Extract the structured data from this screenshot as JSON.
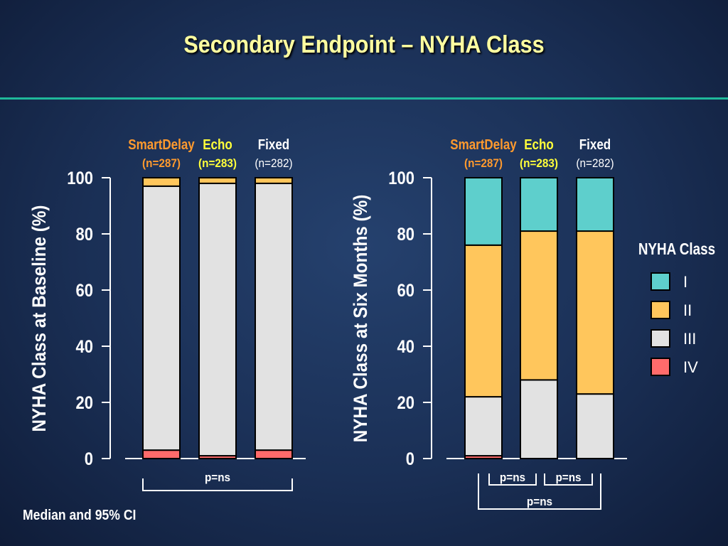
{
  "title": "Secondary Endpoint – NYHA Class",
  "footnote": "Median and 95% CI",
  "colors": {
    "class_I": "#5ecfcc",
    "class_II": "#ffc65c",
    "class_III": "#e2e2e2",
    "class_IV": "#ff6b6b",
    "smartdelay_label": "#ff9a2e",
    "echo_label": "#ffff3a",
    "fixed_label": "#ffffff",
    "axis": "#ffffff",
    "title": "#ffffa0"
  },
  "legend": {
    "title": "NYHA Class",
    "items": [
      {
        "label": "I",
        "key": "class_I"
      },
      {
        "label": "II",
        "key": "class_II"
      },
      {
        "label": "III",
        "key": "class_III"
      },
      {
        "label": "IV",
        "key": "class_IV"
      }
    ]
  },
  "chart_data": [
    {
      "type": "bar",
      "stacked": true,
      "ylabel": "NYHA Class at Baseline (%)",
      "ylim": [
        0,
        100
      ],
      "yticks": [
        0,
        20,
        40,
        60,
        80,
        100
      ],
      "categories": [
        "SmartDelay",
        "Echo",
        "Fixed"
      ],
      "category_counts": [
        "(n=287)",
        "(n=283)",
        "(n=282)"
      ],
      "series": [
        {
          "name": "IV",
          "values": [
            3,
            1,
            3
          ]
        },
        {
          "name": "III",
          "values": [
            94,
            97,
            95
          ]
        },
        {
          "name": "II",
          "values": [
            3,
            2,
            2
          ]
        },
        {
          "name": "I",
          "values": [
            0,
            0,
            0
          ]
        }
      ],
      "comparisons": [
        {
          "label": "p=ns",
          "from": "SmartDelay",
          "to": "Fixed"
        }
      ]
    },
    {
      "type": "bar",
      "stacked": true,
      "ylabel": "NYHA Class at Six Months (%)",
      "ylim": [
        0,
        100
      ],
      "yticks": [
        0,
        20,
        40,
        60,
        80,
        100
      ],
      "categories": [
        "SmartDelay",
        "Echo",
        "Fixed"
      ],
      "category_counts": [
        "(n=287)",
        "(n=283)",
        "(n=282)"
      ],
      "series": [
        {
          "name": "IV",
          "values": [
            1,
            0,
            0
          ]
        },
        {
          "name": "III",
          "values": [
            21,
            28,
            23
          ]
        },
        {
          "name": "II",
          "values": [
            54,
            53,
            58
          ]
        },
        {
          "name": "I",
          "values": [
            24,
            19,
            19
          ]
        }
      ],
      "comparisons": [
        {
          "label": "p=ns",
          "from": "SmartDelay",
          "to": "Echo"
        },
        {
          "label": "p=ns",
          "from": "Echo",
          "to": "Fixed"
        },
        {
          "label": "p=ns",
          "from": "SmartDelay",
          "to": "Fixed"
        }
      ]
    }
  ]
}
